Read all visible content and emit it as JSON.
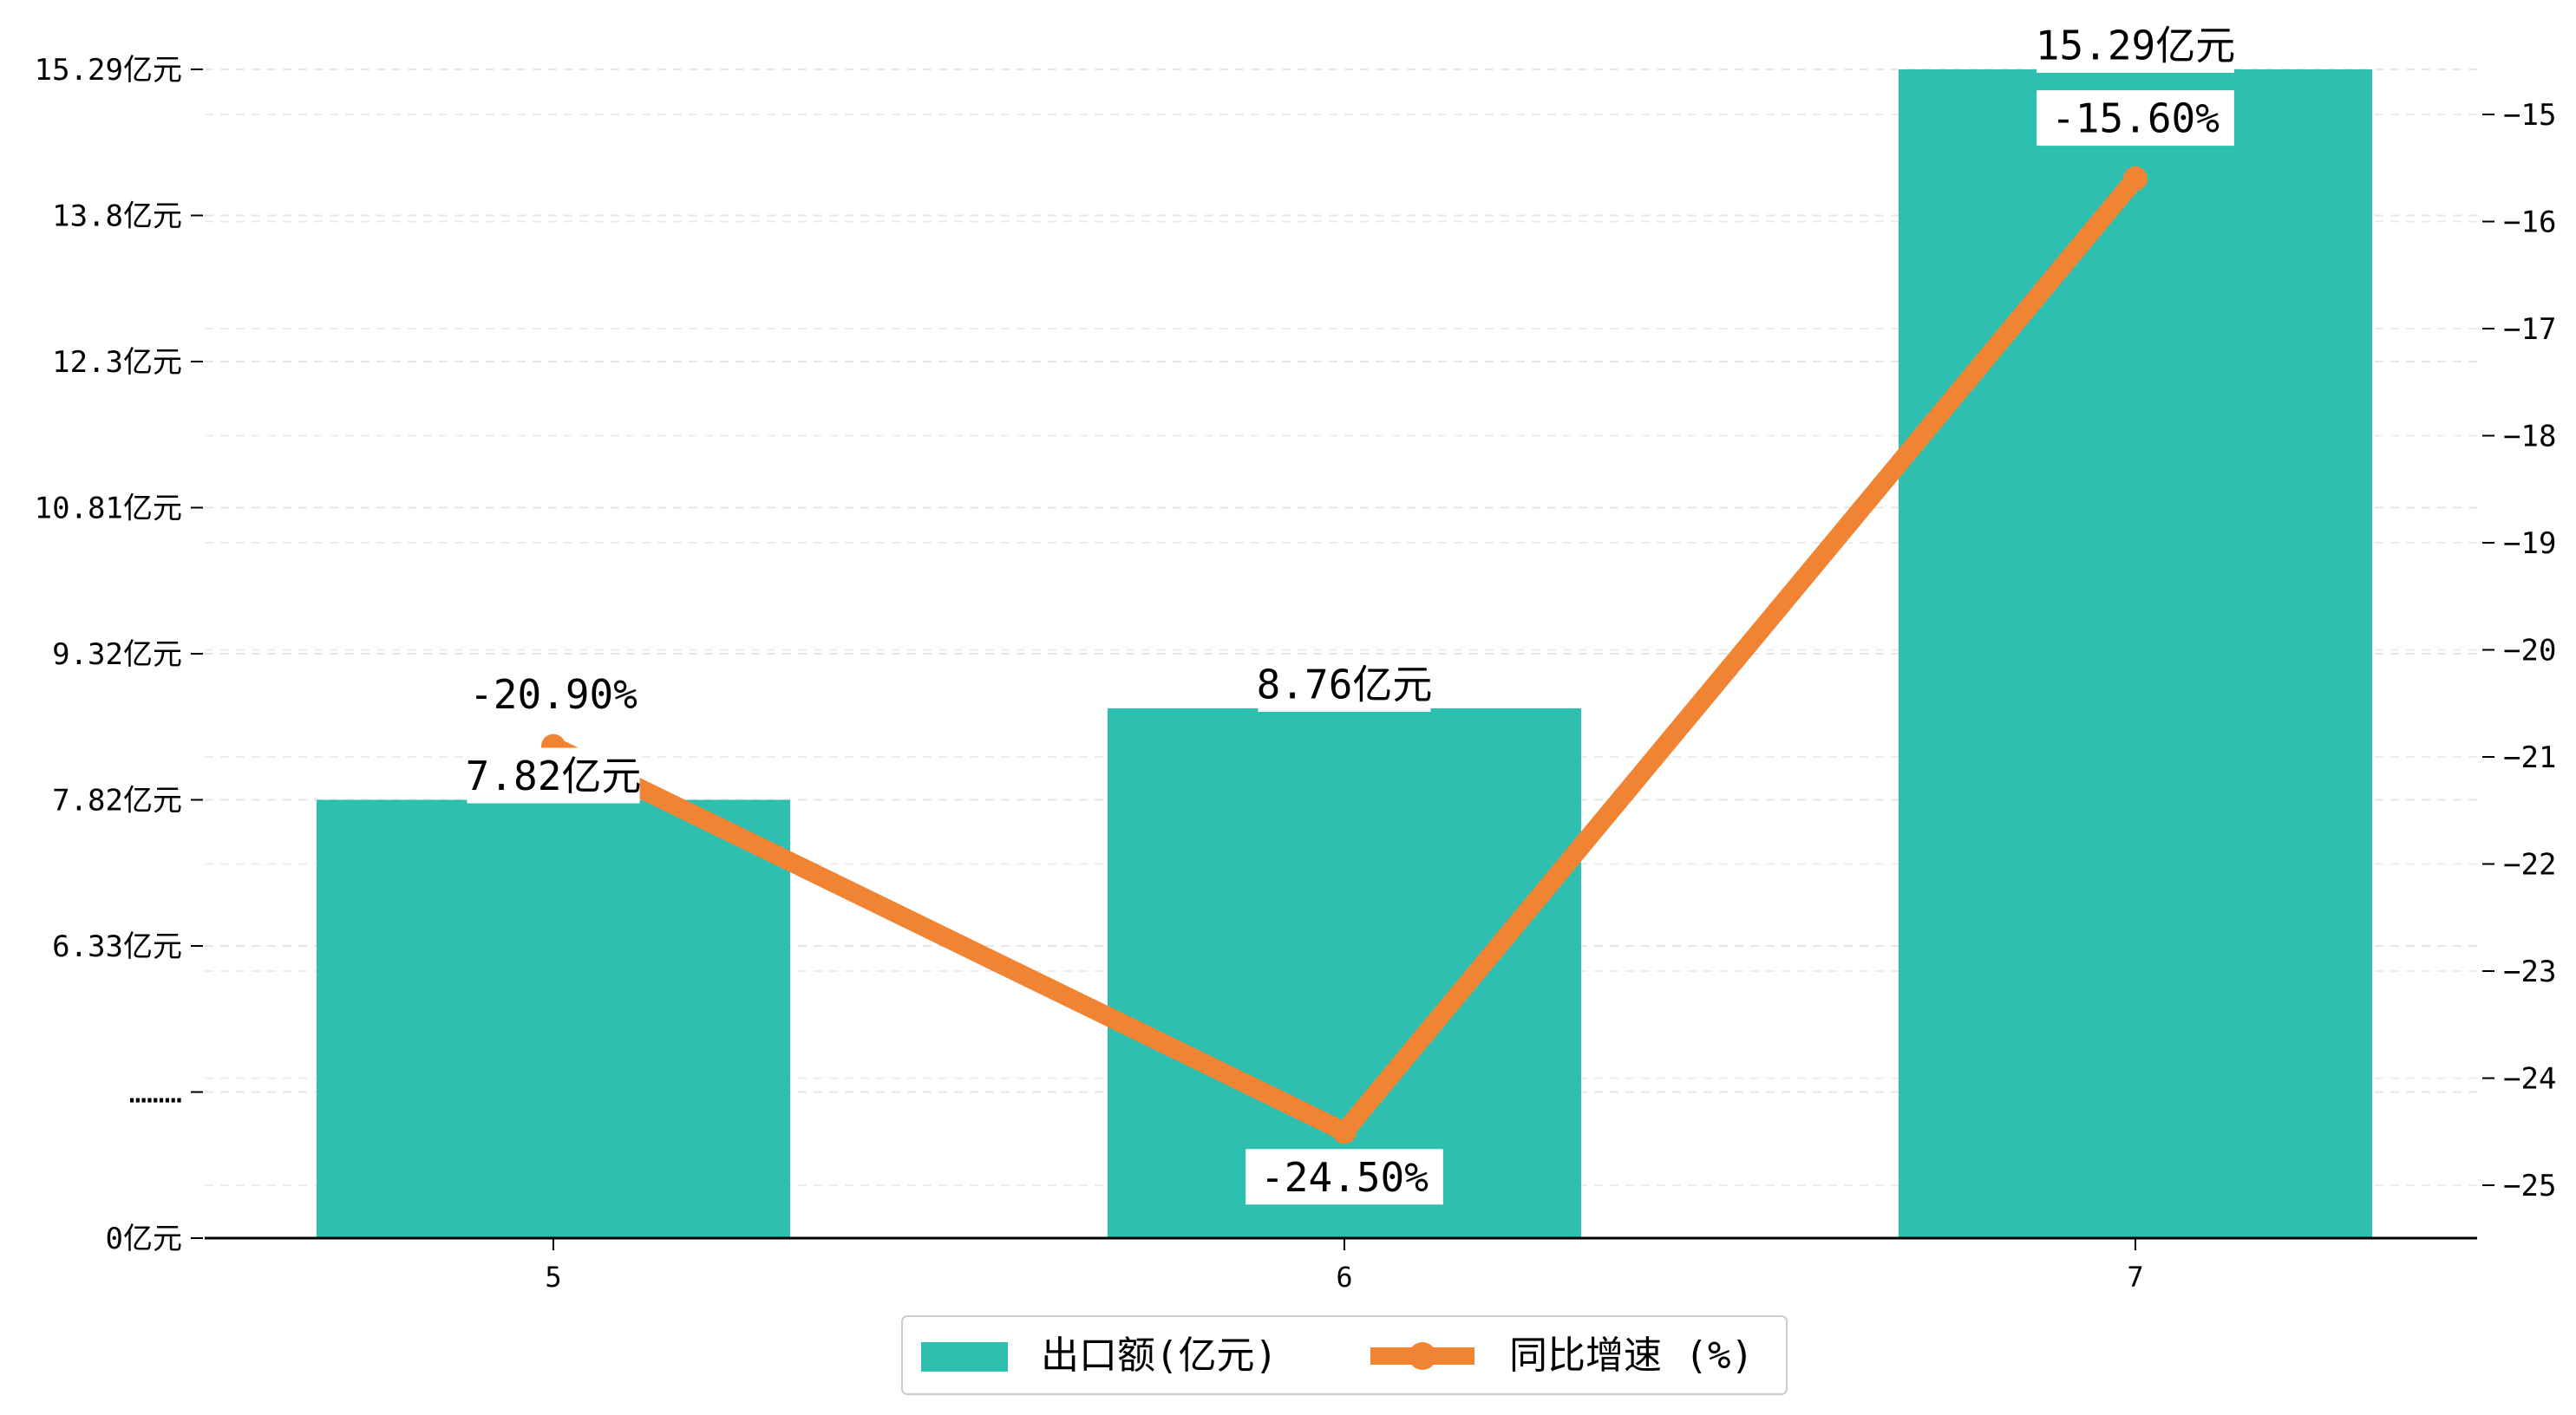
{
  "chart_data": {
    "type": "bar",
    "categories": [
      "5",
      "6",
      "7"
    ],
    "series": [
      {
        "name": "出口额(亿元)",
        "kind": "bar",
        "axis": "left",
        "values": [
          7.82,
          8.76,
          15.29
        ],
        "labels": [
          "7.82亿元",
          "8.76亿元",
          "15.29亿元"
        ],
        "color": "#2fbfb0"
      },
      {
        "name": "同比增速 (%)",
        "kind": "line",
        "axis": "right",
        "values": [
          -20.9,
          -24.5,
          -15.6
        ],
        "labels": [
          "-20.90%",
          "-24.50%",
          "-15.60%"
        ],
        "color": "#f08432"
      }
    ],
    "left_axis": {
      "ticks": [
        {
          "value": 0,
          "label": "0亿元"
        },
        {
          "value": 4.84,
          "label": "………"
        },
        {
          "value": 6.33,
          "label": "6.33亿元"
        },
        {
          "value": 7.82,
          "label": "7.82亿元"
        },
        {
          "value": 9.32,
          "label": "9.32亿元"
        },
        {
          "value": 10.81,
          "label": "10.81亿元"
        },
        {
          "value": 12.3,
          "label": "12.3亿元"
        },
        {
          "value": 13.8,
          "label": "13.8亿元"
        },
        {
          "value": 15.29,
          "label": "15.29亿元"
        }
      ]
    },
    "right_axis": {
      "ylim": [
        -25.5,
        -14.5
      ],
      "ticks": [
        -25,
        -24,
        -23,
        -22,
        -21,
        -20,
        -19,
        -18,
        -17,
        -16,
        -15
      ]
    },
    "grid": true,
    "legend_position": "bottom-center"
  }
}
